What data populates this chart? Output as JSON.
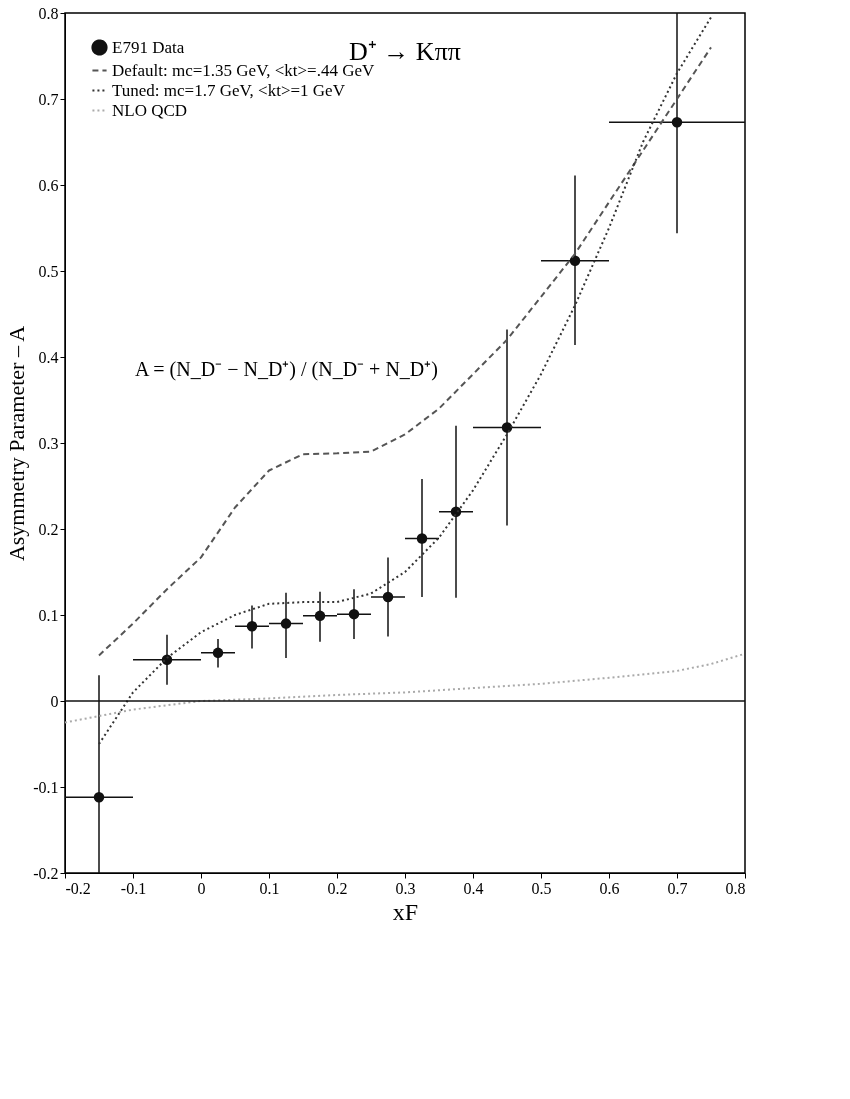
{
  "chart_data": {
    "type": "scatter",
    "title": "D⁺ → Kππ",
    "xlabel": "xF",
    "ylabel": "Asymmetry Parameter – A",
    "xlim": [
      -0.2,
      0.8
    ],
    "xticks": [
      -0.2,
      -0.1,
      0,
      0.1,
      0.2,
      0.3,
      0.4,
      0.5,
      0.6,
      0.7,
      0.8
    ],
    "ylim": [
      -0.2,
      0.8
    ],
    "yticks": [
      -0.2,
      -0.1,
      0,
      0.1,
      0.2,
      0.3,
      0.4,
      0.5,
      0.6,
      0.7,
      0.8
    ],
    "legend": "top left",
    "grid": false,
    "series": [
      {
        "name": "E791 Data",
        "marker": "circle",
        "color": "#111111",
        "x": [
          -0.15,
          -0.05,
          0.025,
          0.075,
          0.125,
          0.175,
          0.225,
          0.275,
          0.325,
          0.375,
          0.45,
          0.55,
          0.7
        ],
        "values": [
          -0.112,
          0.048,
          0.056,
          0.087,
          0.09,
          0.099,
          0.101,
          0.121,
          0.189,
          0.22,
          0.318,
          0.512,
          0.673
        ],
        "errors": [
          [
            -0.2,
            0.03
          ],
          [
            0.019,
            0.077
          ],
          [
            0.039,
            0.072
          ],
          [
            0.061,
            0.111
          ],
          [
            0.05,
            0.126
          ],
          [
            0.069,
            0.127
          ],
          [
            0.072,
            0.13
          ],
          [
            0.075,
            0.167
          ],
          [
            0.121,
            0.258
          ],
          [
            0.12,
            0.32
          ],
          [
            0.204,
            0.432
          ],
          [
            0.414,
            0.611
          ],
          [
            0.544,
            0.8
          ]
        ],
        "xerrors": [
          0.05,
          0.05,
          0.025,
          0.025,
          0.025,
          0.025,
          0.025,
          0.025,
          0.025,
          0.025,
          0.05,
          0.05,
          0.1
        ]
      },
      {
        "name": "Default: mc=1.35 GeV, <kt>=.44 GeV",
        "type": "line",
        "line_style": "dashed",
        "color": "#555555",
        "x": [
          -0.15,
          -0.1,
          -0.05,
          0,
          0.05,
          0.1,
          0.15,
          0.2,
          0.25,
          0.3,
          0.35,
          0.4,
          0.45,
          0.5,
          0.55,
          0.6,
          0.65,
          0.7,
          0.75
        ],
        "values": [
          0.053,
          0.09,
          0.13,
          0.167,
          0.225,
          0.268,
          0.287,
          0.288,
          0.29,
          0.31,
          0.34,
          0.38,
          0.42,
          0.47,
          0.52,
          0.58,
          0.64,
          0.7,
          0.76
        ]
      },
      {
        "name": "Tuned: mc=1.7 GeV, <kt>=1 GeV",
        "type": "line",
        "line_style": "dotted",
        "color": "#333333",
        "x": [
          -0.15,
          -0.1,
          -0.05,
          0,
          0.05,
          0.1,
          0.15,
          0.2,
          0.25,
          0.3,
          0.35,
          0.4,
          0.45,
          0.5,
          0.55,
          0.6,
          0.65,
          0.7,
          0.75
        ],
        "values": [
          -0.05,
          0.01,
          0.05,
          0.08,
          0.1,
          0.113,
          0.115,
          0.115,
          0.125,
          0.15,
          0.19,
          0.245,
          0.31,
          0.38,
          0.46,
          0.55,
          0.65,
          0.73,
          0.795
        ]
      },
      {
        "name": "NLO QCD",
        "type": "line",
        "line_style": "dotted",
        "color": "#aaaaaa",
        "x": [
          -0.2,
          -0.1,
          0,
          0.1,
          0.2,
          0.3,
          0.4,
          0.5,
          0.6,
          0.7,
          0.75,
          0.8
        ],
        "values": [
          -0.025,
          -0.01,
          0,
          0.003,
          0.007,
          0.01,
          0.015,
          0.02,
          0.027,
          0.035,
          0.043,
          0.055
        ]
      }
    ],
    "ref_lines": [
      {
        "axis": "y",
        "value": 0,
        "color": "#111111",
        "line_style": "solid"
      }
    ],
    "annotations": [
      "A = (N_D⁻ − N_D⁺) / (N_D⁻ + N_D⁺)"
    ]
  }
}
